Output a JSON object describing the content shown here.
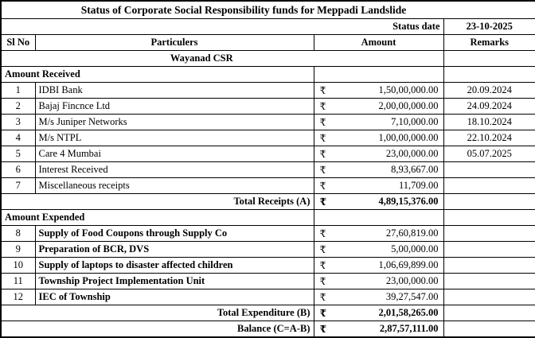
{
  "title": "Status of Corporate Social Responsibility funds for Meppadi Landslide",
  "status_date_label": "Status date",
  "status_date_value": "23-10-2025",
  "currency": "₹",
  "colors": {
    "text": "#000000",
    "border": "#000000",
    "background": "#ffffff"
  },
  "columns": {
    "sl_no": "Sl No",
    "particulars": "Particulers",
    "amount": "Amount",
    "remarks": "Remarks"
  },
  "section_header": "Wayanad CSR",
  "received": {
    "label": "Amount Received",
    "rows": [
      {
        "sl": "1",
        "particulars": "IDBI Bank",
        "amount": "1,50,00,000.00",
        "remark": "20.09.2024"
      },
      {
        "sl": "2",
        "particulars": "Bajaj Fincnce Ltd",
        "amount": "2,00,00,000.00",
        "remark": "24.09.2024"
      },
      {
        "sl": "3",
        "particulars": "M/s Juniper Networks",
        "amount": "7,10,000.00",
        "remark": "18.10.2024"
      },
      {
        "sl": "4",
        "particulars": "M/s NTPL",
        "amount": "1,00,00,000.00",
        "remark": "22.10.2024"
      },
      {
        "sl": "5",
        "particulars": "Care 4 Mumbai",
        "amount": "23,00,000.00",
        "remark": "05.07.2025"
      },
      {
        "sl": "6",
        "particulars": "Interest Received",
        "amount": "8,93,667.00",
        "remark": ""
      },
      {
        "sl": "7",
        "particulars": "Miscellaneous receipts",
        "amount": "11,709.00",
        "remark": ""
      }
    ],
    "total_label": "Total Receipts (A)",
    "total_amount": "4,89,15,376.00"
  },
  "expended": {
    "label": "Amount Expended",
    "rows": [
      {
        "sl": "8",
        "particulars": "Supply of Food Coupons through Supply Co",
        "amount": "27,60,819.00",
        "remark": ""
      },
      {
        "sl": "9",
        "particulars": "Preparation of BCR, DVS",
        "amount": "5,00,000.00",
        "remark": ""
      },
      {
        "sl": "10",
        "particulars": "Supply of laptops to disaster affected children",
        "amount": "1,06,69,899.00",
        "remark": ""
      },
      {
        "sl": "11",
        "particulars": "Township Project Implementation Unit",
        "amount": "23,00,000.00",
        "remark": ""
      },
      {
        "sl": "12",
        "particulars": "IEC of Township",
        "amount": "39,27,547.00",
        "remark": ""
      }
    ],
    "total_label": "Total Expenditure (B)",
    "total_amount": "2,01,58,265.00"
  },
  "balance_label": "Balance (C=A-B)",
  "balance_amount": "2,87,57,111.00"
}
